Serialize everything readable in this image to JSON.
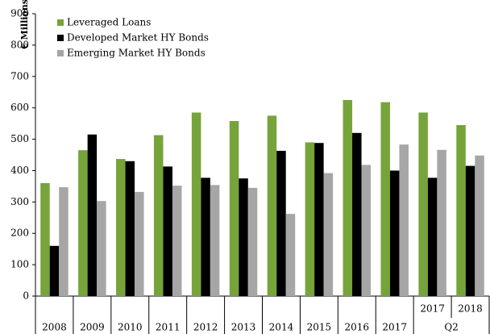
{
  "chart_data": {
    "type": "bar",
    "y_label": "€ Millions",
    "categories": [
      "2008",
      "2009",
      "2010",
      "2011",
      "2012",
      "2013",
      "2014",
      "2015",
      "2016",
      "2017",
      "2017",
      "2018"
    ],
    "category_group": {
      "label": "Q2",
      "span": 2
    },
    "series": [
      {
        "name": "Leveraged Loans",
        "color": "#77a33b",
        "values": [
          360,
          465,
          437,
          513,
          585,
          558,
          575,
          490,
          625,
          618,
          585,
          545
        ]
      },
      {
        "name": "Developed Market HY Bonds",
        "color": "#000000",
        "values": [
          160,
          515,
          430,
          413,
          377,
          375,
          463,
          488,
          520,
          400,
          377,
          415
        ]
      },
      {
        "name": "Emerging Market HY Bonds",
        "color": "#a6a6a6",
        "values": [
          347,
          303,
          332,
          352,
          354,
          345,
          262,
          392,
          418,
          483,
          466,
          448
        ]
      }
    ],
    "ylim": [
      0,
      900
    ],
    "yticks": [
      0,
      100,
      200,
      300,
      400,
      500,
      600,
      700,
      800,
      900
    ],
    "legend": "upper left"
  }
}
